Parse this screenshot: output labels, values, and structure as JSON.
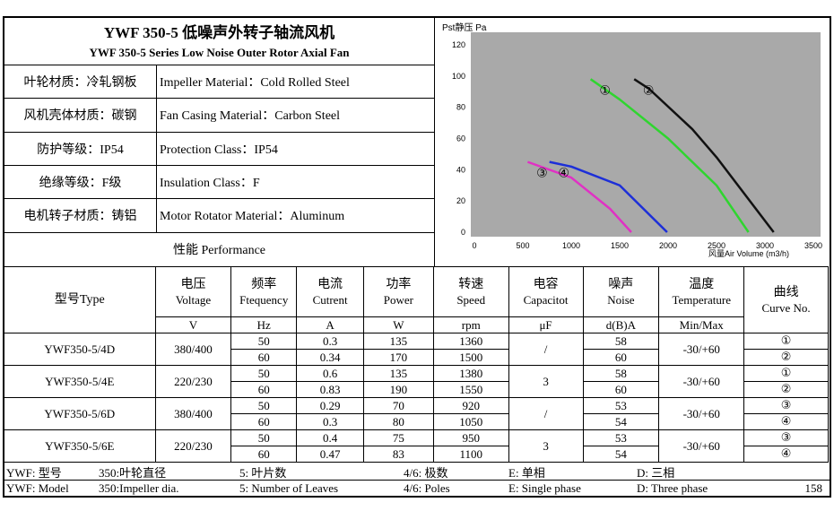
{
  "header": {
    "title_cn": "YWF 350-5 低噪声外转子轴流风机",
    "title_en": "YWF 350-5 Series Low Noise Outer Rotor Axial Fan"
  },
  "specs": [
    [
      "叶轮材质：冷轧钢板",
      "Impeller Material：Cold Rolled Steel"
    ],
    [
      "风机壳体材质：碳钢",
      "Fan Casing Material：Carbon Steel"
    ],
    [
      "防护等级：IP54",
      "Protection Class：IP54"
    ],
    [
      "绝缘等级：F级",
      "Insulation Class：F"
    ],
    [
      "电机转子材质：铸铝",
      "Motor Rotator Material：Aluminum"
    ]
  ],
  "performance_label": "性能  Performance",
  "chart_data": {
    "type": "line",
    "y_label": "Pst静压 Pa",
    "x_label": "风量Air Volume (m3/h)",
    "xlim": [
      0,
      3500
    ],
    "ylim": [
      0,
      120
    ],
    "xticks": [
      0,
      500,
      1000,
      1500,
      2000,
      2500,
      3000,
      3500
    ],
    "yticks": [
      0,
      20,
      40,
      60,
      80,
      100,
      120
    ],
    "grid": false,
    "series": [
      {
        "name": "①",
        "color": "#2fd52f",
        "x": [
          1200,
          1500,
          2000,
          2500,
          2830
        ],
        "values": [
          98,
          85,
          60,
          30,
          0
        ]
      },
      {
        "name": "②",
        "color": "#111111",
        "x": [
          1650,
          1800,
          2250,
          2500,
          3090
        ],
        "values": [
          98,
          92,
          66,
          48,
          0
        ]
      },
      {
        "name": "③",
        "color": "#e031c4",
        "x": [
          550,
          1000,
          1400,
          1620
        ],
        "values": [
          45,
          35,
          15,
          0
        ]
      },
      {
        "name": "④",
        "color": "#1d2fd8",
        "x": [
          775,
          1000,
          1500,
          1990
        ],
        "values": [
          45,
          42,
          30,
          0
        ]
      }
    ]
  },
  "table": {
    "headers": [
      {
        "cn": "型号Type"
      },
      {
        "cn": "电压",
        "en": "Voltage",
        "unit": "V"
      },
      {
        "cn": "频率",
        "en": "Ftequency",
        "unit": "Hz"
      },
      {
        "cn": "电流",
        "en": "Cutrent",
        "unit": "A"
      },
      {
        "cn": "功率",
        "en": "Power",
        "unit": "W"
      },
      {
        "cn": "转速",
        "en": "Speed",
        "unit": "rpm"
      },
      {
        "cn": "电容",
        "en": "Capacitot",
        "unit": "μF"
      },
      {
        "cn": "噪声",
        "en": "Noise",
        "unit": "d(B)A"
      },
      {
        "cn": "温度",
        "en": "Temperature",
        "unit": "Min/Max"
      },
      {
        "cn": "曲线",
        "en": "Curve No."
      }
    ],
    "rows": [
      {
        "model": "YWF350-5/4D",
        "voltage": "380/400",
        "capacitor": "/",
        "temp": "-30/+60",
        "sub": [
          {
            "freq": "50",
            "current": "0.3",
            "power": "135",
            "speed": "1360",
            "noise": "58",
            "curve": "①"
          },
          {
            "freq": "60",
            "current": "0.34",
            "power": "170",
            "speed": "1500",
            "noise": "60",
            "curve": "②"
          }
        ]
      },
      {
        "model": "YWF350-5/4E",
        "voltage": "220/230",
        "capacitor": "3",
        "temp": "-30/+60",
        "sub": [
          {
            "freq": "50",
            "current": "0.6",
            "power": "135",
            "speed": "1380",
            "noise": "58",
            "curve": "①"
          },
          {
            "freq": "60",
            "current": "0.83",
            "power": "190",
            "speed": "1550",
            "noise": "60",
            "curve": "②"
          }
        ]
      },
      {
        "model": "YWF350-5/6D",
        "voltage": "380/400",
        "capacitor": "/",
        "temp": "-30/+60",
        "sub": [
          {
            "freq": "50",
            "current": "0.29",
            "power": "70",
            "speed": "920",
            "noise": "53",
            "curve": "③"
          },
          {
            "freq": "60",
            "current": "0.3",
            "power": "80",
            "speed": "1050",
            "noise": "54",
            "curve": "④"
          }
        ]
      },
      {
        "model": "YWF350-5/6E",
        "voltage": "220/230",
        "capacitor": "3",
        "temp": "-30/+60",
        "sub": [
          {
            "freq": "50",
            "current": "0.4",
            "power": "75",
            "speed": "950",
            "noise": "53",
            "curve": "③"
          },
          {
            "freq": "60",
            "current": "0.47",
            "power": "83",
            "speed": "1100",
            "noise": "54",
            "curve": "④"
          }
        ]
      }
    ]
  },
  "footer": {
    "cn": [
      "YWF: 型号",
      "350:叶轮直径",
      "5: 叶片数",
      "4/6: 极数",
      "E: 单相",
      "D: 三相"
    ],
    "en": [
      "YWF: Model",
      "350:Impeller dia.",
      "5: Number of Leaves",
      "4/6: Poles",
      "E: Single phase",
      "D: Three phase"
    ],
    "page": "158"
  }
}
